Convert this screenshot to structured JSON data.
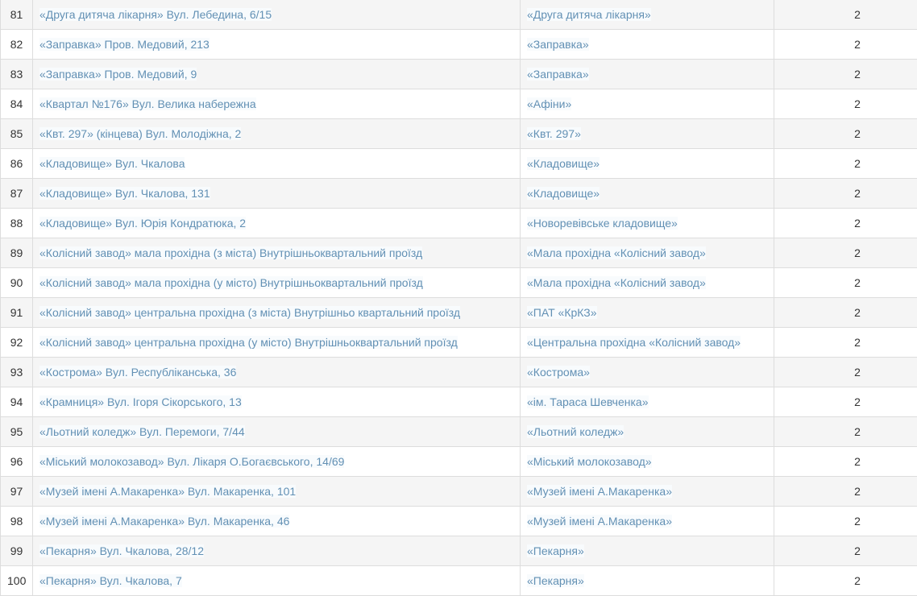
{
  "table": {
    "columns": {
      "num": "row-number",
      "stop": "stop-name-and-address",
      "station": "station-name",
      "count": "route-count"
    },
    "rows": [
      {
        "num": "81",
        "stop": "«Друга дитяча лікарня» Вул. Лебедина, 6/15",
        "station": "«Друга дитяча лікарня»",
        "count": "2"
      },
      {
        "num": "82",
        "stop": "«Заправка» Пров. Медовий, 213",
        "station": "«Заправка»",
        "count": "2"
      },
      {
        "num": "83",
        "stop": "«Заправка» Пров. Медовий, 9",
        "station": "«Заправка»",
        "count": "2"
      },
      {
        "num": "84",
        "stop": "«Квартал №176» Вул. Велика набережна",
        "station": "«Афіни»",
        "count": "2"
      },
      {
        "num": "85",
        "stop": "«Квт. 297» (кінцева) Вул. Молодіжна, 2",
        "station": "«Квт. 297»",
        "count": "2"
      },
      {
        "num": "86",
        "stop": "«Кладовище» Вул. Чкалова",
        "station": "«Кладовище»",
        "count": "2"
      },
      {
        "num": "87",
        "stop": "«Кладовище» Вул. Чкалова, 131",
        "station": "«Кладовище»",
        "count": "2"
      },
      {
        "num": "88",
        "stop": "«Кладовище» Вул. Юрія Кондратюка, 2",
        "station": "«Новоревівське кладовище»",
        "count": "2"
      },
      {
        "num": "89",
        "stop": "«Колісний завод» мала прохідна (з міста) Внутрішньоквартальний проїзд",
        "station": "«Мала прохідна «Колісний завод»",
        "count": "2"
      },
      {
        "num": "90",
        "stop": "«Колісний завод» мала прохідна (у місто) Внутрішньоквартальний проїзд",
        "station": "«Мала прохідна «Колісний завод»",
        "count": "2"
      },
      {
        "num": "91",
        "stop": "«Колісний завод» центральна прохідна (з міста) Внутрішньо квартальний проїзд",
        "station": "«ПАТ «КрКЗ»",
        "count": "2"
      },
      {
        "num": "92",
        "stop": "«Колісний завод» центральна прохідна (у місто) Внутрішньоквартальний проїзд",
        "station": "«Центральна прохідна «Колісний завод»",
        "count": "2"
      },
      {
        "num": "93",
        "stop": "«Кострома» Вул. Республіканська, 36",
        "station": "«Кострома»",
        "count": "2"
      },
      {
        "num": "94",
        "stop": "«Крамниця» Вул. Ігоря Сікорського, 13",
        "station": "«ім. Тараса Шевченка»",
        "count": "2"
      },
      {
        "num": "95",
        "stop": "«Льотний коледж» Вул. Перемоги, 7/44",
        "station": "«Льотний коледж»",
        "count": "2"
      },
      {
        "num": "96",
        "stop": "«Міський молокозавод» Вул. Лікаря О.Богаєвського, 14/69",
        "station": "«Міський молокозавод»",
        "count": "2"
      },
      {
        "num": "97",
        "stop": "«Музей імені А.Макаренка» Вул. Макаренка, 101",
        "station": "«Музей імені А.Макаренка»",
        "count": "2"
      },
      {
        "num": "98",
        "stop": "«Музей імені А.Макаренка» Вул. Макаренка, 46",
        "station": "«Музей імені А.Макаренка»",
        "count": "2"
      },
      {
        "num": "99",
        "stop": "«Пекарня» Вул. Чкалова, 28/12",
        "station": "«Пекарня»",
        "count": "2"
      },
      {
        "num": "100",
        "stop": "«Пекарня» Вул. Чкалова, 7",
        "station": "«Пекарня»",
        "count": "2"
      }
    ]
  },
  "colors": {
    "link": "#6290b4",
    "stripe": "#f5f5f5",
    "border": "#dddddd",
    "text": "#333333",
    "link_highlight": "#f8fbfd"
  }
}
